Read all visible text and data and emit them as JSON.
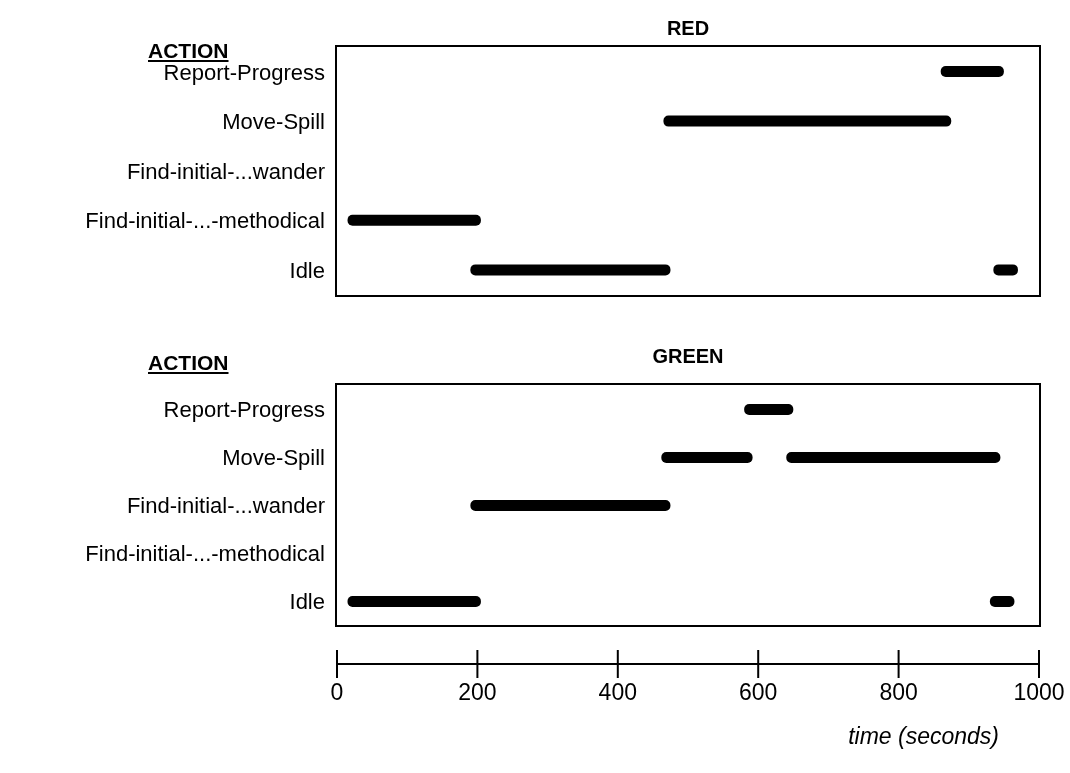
{
  "chart_data": [
    {
      "type": "bar",
      "orientation": "horizontal",
      "title": "RED",
      "ylabel": "ACTION",
      "categories": [
        "Report-Progress",
        "Move-Spill",
        "Find-initial-...wander",
        "Find-initial-...-methodical",
        "Idle"
      ],
      "series": [
        {
          "color": "#000000",
          "base": [
            860,
            465,
            null,
            15,
            190
          ],
          "values": [
            90,
            410,
            null,
            190,
            285
          ]
        },
        {
          "color": "#000000",
          "base": [
            null,
            null,
            null,
            null,
            935
          ],
          "values": [
            null,
            null,
            null,
            null,
            35
          ]
        }
      ],
      "xlim": [
        0,
        1000
      ],
      "tick_labels": "y"
    },
    {
      "type": "bar",
      "orientation": "horizontal",
      "title": "GREEN",
      "ylabel": "ACTION",
      "xlabel": "time (seconds)",
      "categories": [
        "Report-Progress",
        "Move-Spill",
        "Find-initial-...wander",
        "Find-initial-...-methodical",
        "Idle"
      ],
      "series": [
        {
          "color": "#000000",
          "base": [
            580,
            462,
            190,
            null,
            15
          ],
          "values": [
            70,
            130,
            285,
            null,
            190
          ]
        },
        {
          "color": "#000000",
          "base": [
            null,
            640,
            null,
            null,
            930
          ],
          "values": [
            null,
            305,
            null,
            null,
            35
          ]
        }
      ],
      "xlim": [
        0,
        1000
      ],
      "xticks": [
        0,
        200,
        400,
        600,
        800,
        1000
      ]
    }
  ]
}
